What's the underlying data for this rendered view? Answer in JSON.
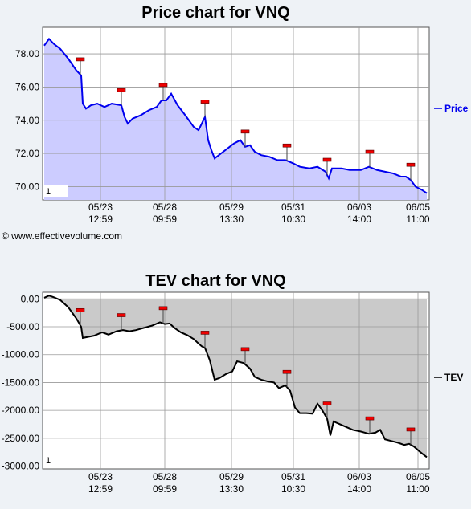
{
  "chart_data": [
    {
      "type": "area",
      "title": "Price chart for VNQ",
      "legend": "Price",
      "legend_position": "right",
      "color": "#0000ee",
      "fill": "#ccccff",
      "grid": true,
      "ylim": [
        69.2,
        79.6
      ],
      "yticks": [
        "70.00",
        "72.00",
        "74.00",
        "76.00",
        "78.00"
      ],
      "xtick_labels": [
        [
          "05/23",
          "12:59"
        ],
        [
          "05/28",
          "09:59"
        ],
        [
          "05/29",
          "13:30"
        ],
        [
          "05/31",
          "10:30"
        ],
        [
          "06/03",
          "14:00"
        ],
        [
          "06/05",
          "11:00"
        ]
      ],
      "series_points": [
        [
          0,
          78.5
        ],
        [
          6,
          78.9
        ],
        [
          12,
          78.6
        ],
        [
          20,
          78.3
        ],
        [
          30,
          77.7
        ],
        [
          40,
          77.0
        ],
        [
          46,
          76.7
        ],
        [
          48,
          75.0
        ],
        [
          52,
          74.7
        ],
        [
          58,
          74.9
        ],
        [
          66,
          75.0
        ],
        [
          75,
          74.8
        ],
        [
          84,
          75.0
        ],
        [
          96,
          74.9
        ],
        [
          100,
          74.2
        ],
        [
          104,
          73.8
        ],
        [
          110,
          74.1
        ],
        [
          120,
          74.3
        ],
        [
          130,
          74.6
        ],
        [
          140,
          74.8
        ],
        [
          146,
          75.2
        ],
        [
          152,
          75.2
        ],
        [
          158,
          75.6
        ],
        [
          166,
          74.9
        ],
        [
          174,
          74.4
        ],
        [
          180,
          74.0
        ],
        [
          186,
          73.6
        ],
        [
          192,
          73.4
        ],
        [
          196,
          73.8
        ],
        [
          200,
          74.2
        ],
        [
          204,
          72.8
        ],
        [
          208,
          72.2
        ],
        [
          212,
          71.7
        ],
        [
          220,
          72.0
        ],
        [
          228,
          72.3
        ],
        [
          236,
          72.6
        ],
        [
          244,
          72.8
        ],
        [
          250,
          72.4
        ],
        [
          256,
          72.5
        ],
        [
          262,
          72.1
        ],
        [
          270,
          71.9
        ],
        [
          280,
          71.8
        ],
        [
          290,
          71.6
        ],
        [
          300,
          71.6
        ],
        [
          310,
          71.4
        ],
        [
          318,
          71.2
        ],
        [
          330,
          71.1
        ],
        [
          340,
          71.2
        ],
        [
          350,
          70.9
        ],
        [
          354,
          70.5
        ],
        [
          358,
          71.1
        ],
        [
          370,
          71.1
        ],
        [
          380,
          71.0
        ],
        [
          394,
          71.0
        ],
        [
          404,
          71.2
        ],
        [
          414,
          71.0
        ],
        [
          424,
          70.9
        ],
        [
          434,
          70.8
        ],
        [
          444,
          70.6
        ],
        [
          450,
          70.6
        ],
        [
          456,
          70.4
        ],
        [
          462,
          70.0
        ],
        [
          470,
          69.8
        ],
        [
          476,
          69.6
        ]
      ],
      "markers_x": [
        45,
        96,
        148,
        200,
        250,
        302,
        352,
        405,
        456
      ],
      "page": "1"
    },
    {
      "type": "area",
      "title": "TEV chart for VNQ",
      "legend": "TEV",
      "legend_position": "right",
      "color": "#000000",
      "fill": "#cacaca",
      "grid": true,
      "ylim": [
        -3050,
        120
      ],
      "yticks": [
        "0.00",
        "-500.00",
        "-1000.00",
        "-1500.00",
        "-2000.00",
        "-2500.00",
        "-3000.00"
      ],
      "xtick_labels": [
        [
          "05/23",
          "12:59"
        ],
        [
          "05/28",
          "09:59"
        ],
        [
          "05/29",
          "13:30"
        ],
        [
          "05/31",
          "10:30"
        ],
        [
          "06/03",
          "14:00"
        ],
        [
          "06/05",
          "11:00"
        ]
      ],
      "series_points": [
        [
          0,
          20
        ],
        [
          6,
          60
        ],
        [
          12,
          30
        ],
        [
          20,
          -20
        ],
        [
          30,
          -150
        ],
        [
          40,
          -350
        ],
        [
          46,
          -500
        ],
        [
          48,
          -700
        ],
        [
          55,
          -680
        ],
        [
          62,
          -660
        ],
        [
          72,
          -600
        ],
        [
          80,
          -640
        ],
        [
          90,
          -580
        ],
        [
          98,
          -560
        ],
        [
          106,
          -580
        ],
        [
          114,
          -560
        ],
        [
          124,
          -520
        ],
        [
          134,
          -480
        ],
        [
          144,
          -420
        ],
        [
          150,
          -450
        ],
        [
          156,
          -440
        ],
        [
          162,
          -520
        ],
        [
          170,
          -600
        ],
        [
          178,
          -650
        ],
        [
          186,
          -720
        ],
        [
          192,
          -800
        ],
        [
          196,
          -850
        ],
        [
          200,
          -880
        ],
        [
          206,
          -1100
        ],
        [
          212,
          -1450
        ],
        [
          218,
          -1420
        ],
        [
          226,
          -1350
        ],
        [
          234,
          -1300
        ],
        [
          240,
          -1120
        ],
        [
          248,
          -1150
        ],
        [
          256,
          -1250
        ],
        [
          262,
          -1400
        ],
        [
          270,
          -1450
        ],
        [
          278,
          -1480
        ],
        [
          286,
          -1500
        ],
        [
          292,
          -1600
        ],
        [
          300,
          -1550
        ],
        [
          306,
          -1650
        ],
        [
          312,
          -1950
        ],
        [
          318,
          -2050
        ],
        [
          326,
          -2050
        ],
        [
          334,
          -2060
        ],
        [
          340,
          -1880
        ],
        [
          346,
          -2000
        ],
        [
          352,
          -2150
        ],
        [
          356,
          -2450
        ],
        [
          360,
          -2200
        ],
        [
          368,
          -2250
        ],
        [
          376,
          -2300
        ],
        [
          384,
          -2350
        ],
        [
          394,
          -2380
        ],
        [
          404,
          -2420
        ],
        [
          412,
          -2400
        ],
        [
          418,
          -2350
        ],
        [
          424,
          -2520
        ],
        [
          432,
          -2550
        ],
        [
          440,
          -2580
        ],
        [
          448,
          -2620
        ],
        [
          454,
          -2600
        ],
        [
          460,
          -2650
        ],
        [
          468,
          -2750
        ],
        [
          476,
          -2840
        ]
      ],
      "markers_x": [
        45,
        96,
        148,
        200,
        250,
        302,
        352,
        405,
        456
      ],
      "page": "1"
    }
  ],
  "credit": "© www.effectivevolume.com"
}
